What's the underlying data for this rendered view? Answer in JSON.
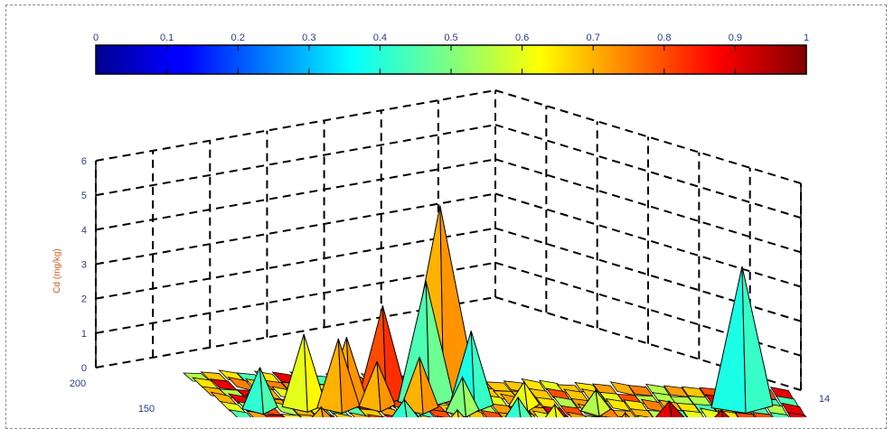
{
  "chart_data": {
    "type": "surface3d",
    "title": "",
    "colorbar": {
      "ticks": [
        "0",
        "0.1",
        "0.2",
        "0.3",
        "0.4",
        "0.5",
        "0.6",
        "0.7",
        "0.8",
        "0.9",
        "1"
      ],
      "range": [
        0,
        1
      ],
      "colormap": "jet",
      "placement": "top"
    },
    "z_axis": {
      "label": "Cd (mg/kg)",
      "ticks": [
        "0",
        "1",
        "2",
        "3",
        "4",
        "5",
        "6"
      ],
      "range": [
        0,
        6
      ]
    },
    "y_axis": {
      "ticks": [
        "200",
        "150"
      ]
    },
    "x_axis": {
      "ticks": [
        "14"
      ]
    },
    "grid": true,
    "peaks": [
      {
        "x": 0.47,
        "y": 0.25,
        "z": 5.4,
        "value": 0.7
      },
      {
        "x": 0.38,
        "y": 0.35,
        "z": 2.6,
        "value": 0.8
      },
      {
        "x": 0.44,
        "y": 0.38,
        "z": 3.4,
        "value": 0.45
      },
      {
        "x": 0.5,
        "y": 0.45,
        "z": 2.1,
        "value": 0.4
      },
      {
        "x": 0.9,
        "y": 0.3,
        "z": 4.0,
        "value": 0.4
      },
      {
        "x": 0.25,
        "y": 0.55,
        "z": 2.0,
        "value": 0.6
      },
      {
        "x": 0.3,
        "y": 0.55,
        "z": 1.9,
        "value": 0.7
      },
      {
        "x": 0.18,
        "y": 0.62,
        "z": 1.1,
        "value": 0.42
      },
      {
        "x": 0.32,
        "y": 0.45,
        "z": 1.8,
        "value": 0.7
      },
      {
        "x": 0.42,
        "y": 0.52,
        "z": 1.4,
        "value": 0.7
      },
      {
        "x": 0.36,
        "y": 0.5,
        "z": 1.2,
        "value": 0.7
      },
      {
        "x": 0.48,
        "y": 0.55,
        "z": 0.9,
        "value": 0.5
      },
      {
        "x": 0.58,
        "y": 0.4,
        "z": 0.6,
        "value": 0.6
      },
      {
        "x": 0.68,
        "y": 0.45,
        "z": 0.5,
        "value": 0.55
      },
      {
        "x": 0.78,
        "y": 0.55,
        "z": 0.4,
        "value": 0.9
      },
      {
        "x": 0.55,
        "y": 0.7,
        "z": 0.6,
        "value": 0.42
      },
      {
        "x": 0.6,
        "y": 0.75,
        "z": 0.5,
        "value": 0.6
      },
      {
        "x": 0.38,
        "y": 0.75,
        "z": 0.5,
        "value": 0.42
      },
      {
        "x": 0.45,
        "y": 0.85,
        "z": 0.4,
        "value": 0.65
      },
      {
        "x": 0.7,
        "y": 0.8,
        "z": 0.4,
        "value": 0.7
      },
      {
        "x": 0.85,
        "y": 0.65,
        "z": 0.35,
        "value": 0.9
      },
      {
        "x": 0.25,
        "y": 0.85,
        "z": 0.35,
        "value": 0.7
      }
    ]
  }
}
